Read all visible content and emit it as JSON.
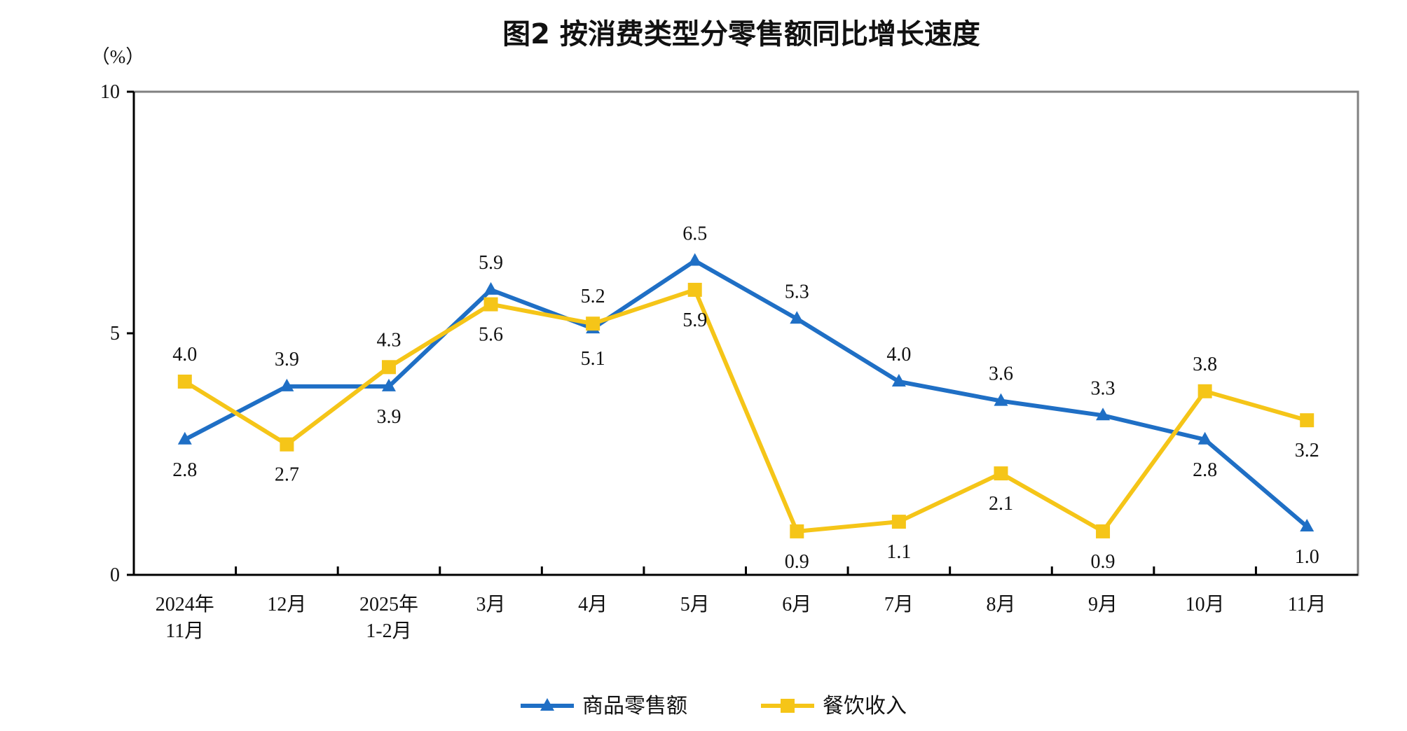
{
  "chart_data": {
    "type": "line",
    "title": "图2  按消费类型分零售额同比增长速度",
    "y_unit_label": "（%）",
    "xlabel": "",
    "ylabel": "",
    "ylim": [
      0,
      10
    ],
    "y_ticks": [
      0,
      5,
      10
    ],
    "grid": false,
    "legend_position": "bottom",
    "categories": [
      [
        "2024年",
        "11月"
      ],
      [
        "12月"
      ],
      [
        "2025年",
        "1-2月"
      ],
      [
        "3月"
      ],
      [
        "4月"
      ],
      [
        "5月"
      ],
      [
        "6月"
      ],
      [
        "7月"
      ],
      [
        "8月"
      ],
      [
        "9月"
      ],
      [
        "10月"
      ],
      [
        "11月"
      ]
    ],
    "series": [
      {
        "name": "商品零售额",
        "color": "#1f6fc5",
        "marker": "triangle",
        "values": [
          2.8,
          3.9,
          3.9,
          5.9,
          5.1,
          6.5,
          5.3,
          4.0,
          3.6,
          3.3,
          2.8,
          1.0
        ],
        "labels": [
          "2.8",
          "3.9",
          "3.9",
          "5.9",
          "5.1",
          "6.5",
          "5.3",
          "4.0",
          "3.6",
          "3.3",
          "2.8",
          "1.0"
        ],
        "label_side": [
          "below",
          "above",
          "below",
          "above",
          "below",
          "above",
          "above",
          "above",
          "above",
          "above",
          "below",
          "below"
        ]
      },
      {
        "name": "餐饮收入",
        "color": "#f5c518",
        "marker": "square",
        "values": [
          4.0,
          2.7,
          4.3,
          5.6,
          5.2,
          5.9,
          0.9,
          1.1,
          2.1,
          0.9,
          3.8,
          3.2
        ],
        "labels": [
          "4.0",
          "2.7",
          "4.3",
          "5.6",
          "5.2",
          "5.9",
          "0.9",
          "1.1",
          "2.1",
          "0.9",
          "3.8",
          "3.2"
        ],
        "label_side": [
          "above",
          "below",
          "above",
          "below",
          "above",
          "below",
          "below",
          "below",
          "below",
          "below",
          "above",
          "below"
        ]
      }
    ]
  }
}
